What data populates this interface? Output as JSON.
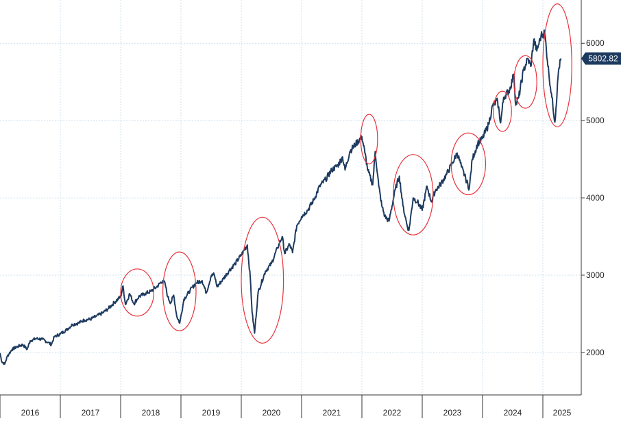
{
  "colors": {
    "line": "#1d3a5f",
    "grid": "#cfe0ee",
    "axis": "#333333",
    "highlight_ellipse": "#e8323c",
    "last_price_badge_bg": "#1d3a5f",
    "last_price_badge_text": "#ffffff"
  },
  "chart_data": {
    "type": "line",
    "title": "",
    "xlabel": "",
    "ylabel": "",
    "x_tick_labels": [
      "2016",
      "2017",
      "2018",
      "2019",
      "2020",
      "2021",
      "2022",
      "2023",
      "2024",
      "2025"
    ],
    "y_ticks": [
      2000,
      3000,
      4000,
      5000,
      6000
    ],
    "ylim": [
      1450,
      6560
    ],
    "xlim": [
      2016.0,
      2025.3
    ],
    "grid": true,
    "y_axis_side": "right",
    "last_value_label": "5802.82",
    "last_value": 5802.82,
    "series": [
      {
        "values": [
          [
            2016.0,
            1990
          ],
          [
            2016.03,
            1880
          ],
          [
            2016.08,
            1850
          ],
          [
            2016.12,
            1950
          ],
          [
            2016.2,
            2040
          ],
          [
            2016.3,
            2080
          ],
          [
            2016.38,
            2100
          ],
          [
            2016.45,
            2040
          ],
          [
            2016.5,
            2150
          ],
          [
            2016.6,
            2180
          ],
          [
            2016.7,
            2170
          ],
          [
            2016.8,
            2130
          ],
          [
            2016.85,
            2100
          ],
          [
            2016.9,
            2200
          ],
          [
            2017.0,
            2240
          ],
          [
            2017.1,
            2290
          ],
          [
            2017.2,
            2360
          ],
          [
            2017.3,
            2380
          ],
          [
            2017.4,
            2420
          ],
          [
            2017.5,
            2430
          ],
          [
            2017.6,
            2470
          ],
          [
            2017.7,
            2510
          ],
          [
            2017.8,
            2570
          ],
          [
            2017.9,
            2650
          ],
          [
            2018.0,
            2720
          ],
          [
            2018.04,
            2860
          ],
          [
            2018.08,
            2620
          ],
          [
            2018.15,
            2760
          ],
          [
            2018.22,
            2630
          ],
          [
            2018.3,
            2720
          ],
          [
            2018.4,
            2760
          ],
          [
            2018.5,
            2790
          ],
          [
            2018.6,
            2850
          ],
          [
            2018.7,
            2930
          ],
          [
            2018.74,
            2880
          ],
          [
            2018.78,
            2720
          ],
          [
            2018.83,
            2640
          ],
          [
            2018.88,
            2740
          ],
          [
            2018.93,
            2470
          ],
          [
            2018.98,
            2380
          ],
          [
            2019.05,
            2690
          ],
          [
            2019.15,
            2800
          ],
          [
            2019.25,
            2900
          ],
          [
            2019.35,
            2930
          ],
          [
            2019.42,
            2770
          ],
          [
            2019.5,
            2990
          ],
          [
            2019.55,
            3010
          ],
          [
            2019.6,
            2850
          ],
          [
            2019.7,
            2950
          ],
          [
            2019.8,
            3060
          ],
          [
            2019.9,
            3150
          ],
          [
            2020.0,
            3260
          ],
          [
            2020.1,
            3390
          ],
          [
            2020.15,
            2960
          ],
          [
            2020.18,
            2520
          ],
          [
            2020.22,
            2250
          ],
          [
            2020.28,
            2780
          ],
          [
            2020.4,
            3050
          ],
          [
            2020.5,
            3150
          ],
          [
            2020.6,
            3350
          ],
          [
            2020.68,
            3500
          ],
          [
            2020.72,
            3280
          ],
          [
            2020.8,
            3400
          ],
          [
            2020.85,
            3290
          ],
          [
            2020.92,
            3640
          ],
          [
            2021.0,
            3760
          ],
          [
            2021.1,
            3840
          ],
          [
            2021.2,
            3970
          ],
          [
            2021.3,
            4150
          ],
          [
            2021.4,
            4240
          ],
          [
            2021.5,
            4360
          ],
          [
            2021.6,
            4420
          ],
          [
            2021.68,
            4530
          ],
          [
            2021.72,
            4360
          ],
          [
            2021.8,
            4600
          ],
          [
            2021.9,
            4700
          ],
          [
            2022.0,
            4790
          ],
          [
            2022.05,
            4580
          ],
          [
            2022.1,
            4350
          ],
          [
            2022.18,
            4170
          ],
          [
            2022.22,
            4600
          ],
          [
            2022.28,
            4150
          ],
          [
            2022.33,
            3900
          ],
          [
            2022.38,
            3760
          ],
          [
            2022.45,
            3700
          ],
          [
            2022.55,
            4100
          ],
          [
            2022.62,
            4280
          ],
          [
            2022.68,
            3900
          ],
          [
            2022.75,
            3640
          ],
          [
            2022.78,
            3580
          ],
          [
            2022.85,
            4000
          ],
          [
            2022.92,
            3950
          ],
          [
            2023.0,
            3840
          ],
          [
            2023.08,
            4150
          ],
          [
            2023.15,
            3950
          ],
          [
            2023.22,
            4100
          ],
          [
            2023.3,
            4170
          ],
          [
            2023.4,
            4300
          ],
          [
            2023.5,
            4450
          ],
          [
            2023.58,
            4580
          ],
          [
            2023.65,
            4400
          ],
          [
            2023.72,
            4250
          ],
          [
            2023.78,
            4120
          ],
          [
            2023.83,
            4500
          ],
          [
            2023.92,
            4700
          ],
          [
            2024.0,
            4770
          ],
          [
            2024.1,
            4950
          ],
          [
            2024.17,
            5200
          ],
          [
            2024.25,
            5250
          ],
          [
            2024.3,
            4970
          ],
          [
            2024.35,
            5300
          ],
          [
            2024.45,
            5400
          ],
          [
            2024.52,
            5600
          ],
          [
            2024.55,
            5200
          ],
          [
            2024.6,
            5300
          ],
          [
            2024.68,
            5650
          ],
          [
            2024.75,
            5800
          ],
          [
            2024.8,
            5700
          ],
          [
            2024.85,
            6050
          ],
          [
            2024.9,
            5900
          ],
          [
            2024.97,
            6100
          ],
          [
            2025.03,
            6140
          ],
          [
            2025.1,
            5600
          ],
          [
            2025.15,
            5300
          ],
          [
            2025.2,
            4980
          ],
          [
            2025.26,
            5650
          ],
          [
            2025.3,
            5802.82
          ]
        ]
      }
    ],
    "highlighted_periods": [
      {
        "x_start": 2018.0,
        "x_end": 2018.55,
        "y_low": 2470,
        "y_high": 3080
      },
      {
        "x_start": 2018.7,
        "x_end": 2019.25,
        "y_low": 2280,
        "y_high": 3300
      },
      {
        "x_start": 2020.0,
        "x_end": 2020.7,
        "y_low": 2120,
        "y_high": 3750
      },
      {
        "x_start": 2021.98,
        "x_end": 2022.26,
        "y_low": 4440,
        "y_high": 5080
      },
      {
        "x_start": 2022.52,
        "x_end": 2023.18,
        "y_low": 3520,
        "y_high": 4560
      },
      {
        "x_start": 2023.48,
        "x_end": 2024.05,
        "y_low": 4040,
        "y_high": 4840
      },
      {
        "x_start": 2024.18,
        "x_end": 2024.48,
        "y_low": 4860,
        "y_high": 5380
      },
      {
        "x_start": 2024.52,
        "x_end": 2024.9,
        "y_low": 5160,
        "y_high": 5840
      },
      {
        "x_start": 2025.0,
        "x_end": 2025.48,
        "y_low": 4920,
        "y_high": 6510
      }
    ]
  }
}
